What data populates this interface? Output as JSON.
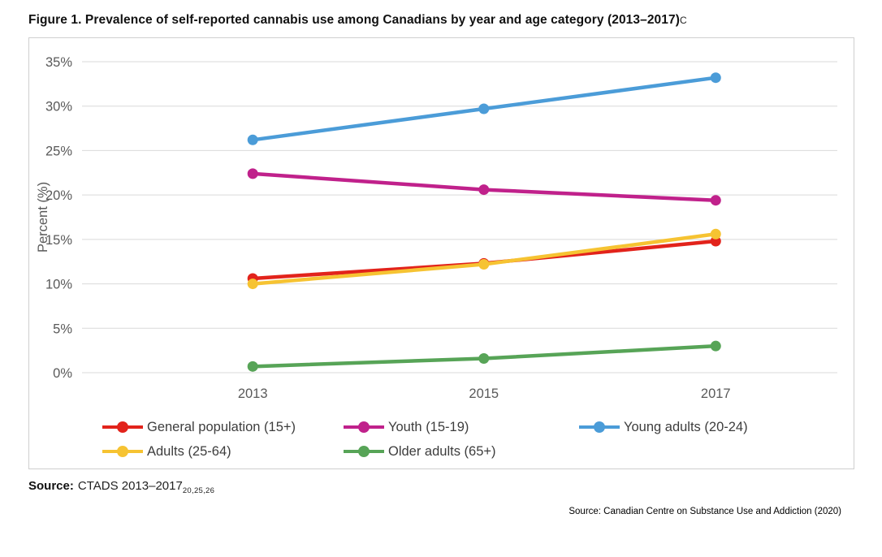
{
  "page": {
    "title": "Figure 1. Prevalence of self-reported cannabis use among Canadians by year and age category (2013–2017)",
    "title_marker": "C",
    "source": {
      "label": "Source:",
      "text": "CTADS 2013–2017",
      "subscript": "20,25,26"
    },
    "attribution": "Source: Canadian Centre on Substance Use and Addiction (2020)"
  },
  "chart_data": {
    "type": "line",
    "title": "",
    "x_categories": [
      "2013",
      "2015",
      "2017"
    ],
    "xlabel": "",
    "ylabel": "Percent (%)",
    "ylim": [
      0,
      35
    ],
    "ytick_step": 5,
    "ytick_suffix": "%",
    "grid": true,
    "legend_position": "bottom",
    "axis_text_color": "#595959",
    "grid_color": "#d9d9d9",
    "series": [
      {
        "name": "General population (15+)",
        "color": "#e2231b",
        "values": [
          10.6,
          12.3,
          14.8
        ]
      },
      {
        "name": "Youth (15-19)",
        "color": "#c0218b",
        "values": [
          22.4,
          20.6,
          19.4
        ]
      },
      {
        "name": "Young adults (20-24)",
        "color": "#4b9cd8",
        "values": [
          26.2,
          29.7,
          33.2
        ]
      },
      {
        "name": "Adults (25-64)",
        "color": "#f6c332",
        "values": [
          10.0,
          12.2,
          15.6
        ]
      },
      {
        "name": "Older adults (65+)",
        "color": "#57a457",
        "values": [
          0.7,
          1.6,
          3.0
        ]
      }
    ]
  }
}
